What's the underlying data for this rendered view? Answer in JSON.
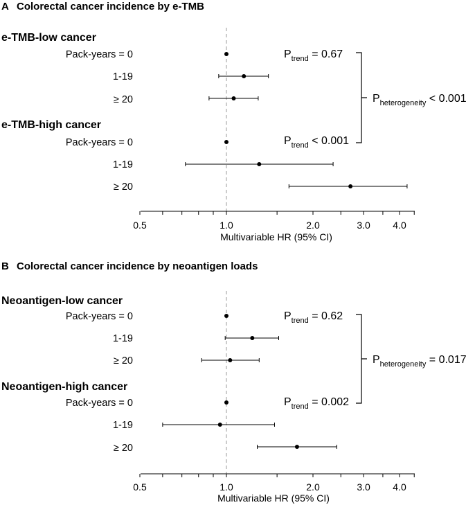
{
  "chart_data": [
    {
      "type": "forest",
      "title": "Colorectal cancer incidence by e-TMB",
      "panel_label": "A",
      "xlabel": "Multivariable HR (95% CI)",
      "xscale": "log",
      "xlim": [
        0.5,
        4.5
      ],
      "xticks": [
        0.5,
        1.0,
        2.0,
        3.0,
        4.0
      ],
      "xtick_labels": [
        "0.5",
        "1.0",
        "2.0",
        "3.0",
        "4.0"
      ],
      "minor_ticks": [
        0.6,
        0.7,
        0.8,
        0.9,
        1.5,
        2.5,
        3.5,
        4.5
      ],
      "reference_line": 1.0,
      "groups": [
        {
          "name": "e-TMB-low cancer",
          "rows": [
            {
              "label": "Pack-years = 0",
              "hr": 1.0,
              "lo": null,
              "hi": null
            },
            {
              "label": "1-19",
              "hr": 1.15,
              "lo": 0.94,
              "hi": 1.4
            },
            {
              "label": "≥ 20",
              "hr": 1.06,
              "lo": 0.87,
              "hi": 1.29
            }
          ],
          "p_trend": {
            "label": "P",
            "sub": "trend",
            "text": " = 0.67"
          }
        },
        {
          "name": "e-TMB-high cancer",
          "rows": [
            {
              "label": "Pack-years = 0",
              "hr": 1.0,
              "lo": null,
              "hi": null
            },
            {
              "label": "1-19",
              "hr": 1.3,
              "lo": 0.72,
              "hi": 2.35
            },
            {
              "label": "≥ 20",
              "hr": 2.7,
              "lo": 1.65,
              "hi": 4.25
            }
          ],
          "p_trend": {
            "label": "P",
            "sub": "trend",
            "text": " < 0.001"
          }
        }
      ],
      "p_heterogeneity": {
        "label": "P",
        "sub": "heterogeneity",
        "text": " < 0.001"
      }
    },
    {
      "type": "forest",
      "title": "Colorectal cancer incidence by neoantigen loads",
      "panel_label": "B",
      "xlabel": "Multivariable HR (95% CI)",
      "xscale": "log",
      "xlim": [
        0.5,
        4.5
      ],
      "xticks": [
        0.5,
        1.0,
        2.0,
        3.0,
        4.0
      ],
      "xtick_labels": [
        "0.5",
        "1.0",
        "2.0",
        "3.0",
        "4.0"
      ],
      "minor_ticks": [
        0.6,
        0.7,
        0.8,
        0.9,
        1.5,
        2.5,
        3.5,
        4.5
      ],
      "reference_line": 1.0,
      "groups": [
        {
          "name": "Neoantigen-low cancer",
          "rows": [
            {
              "label": "Pack-years = 0",
              "hr": 1.0,
              "lo": null,
              "hi": null
            },
            {
              "label": "1-19",
              "hr": 1.23,
              "lo": 0.99,
              "hi": 1.52
            },
            {
              "label": "≥ 20",
              "hr": 1.03,
              "lo": 0.82,
              "hi": 1.3
            }
          ],
          "p_trend": {
            "label": "P",
            "sub": "trend",
            "text": " = 0.62"
          }
        },
        {
          "name": "Neoantigen-high cancer",
          "rows": [
            {
              "label": "Pack-years = 0",
              "hr": 1.0,
              "lo": null,
              "hi": null
            },
            {
              "label": "1-19",
              "hr": 0.95,
              "lo": 0.6,
              "hi": 1.47
            },
            {
              "label": "≥ 20",
              "hr": 1.76,
              "lo": 1.28,
              "hi": 2.42
            }
          ],
          "p_trend": {
            "label": "P",
            "sub": "trend",
            "text": " = 0.002"
          }
        }
      ],
      "p_heterogeneity": {
        "label": "P",
        "sub": "heterogeneity",
        "text": " = 0.017"
      }
    }
  ]
}
